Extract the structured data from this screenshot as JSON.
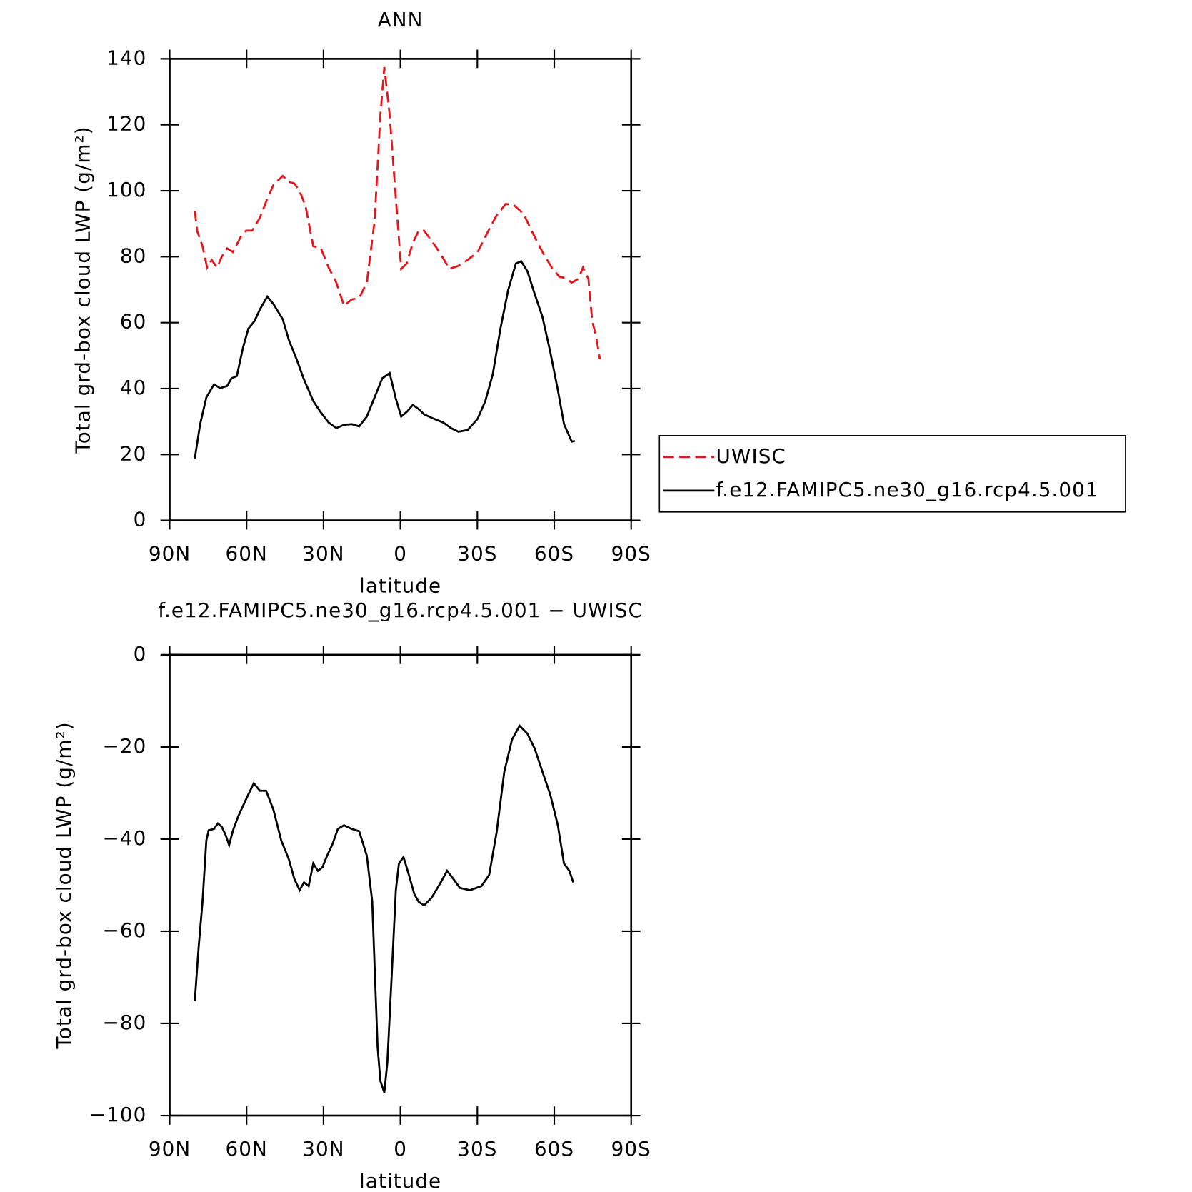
{
  "chart_data": [
    {
      "type": "line",
      "title": "ANN",
      "xlabel": "latitude",
      "ylabel": "Total grd-box cloud LWP (g/m²)",
      "xlim": [
        90,
        -90
      ],
      "xticks": [
        {
          "value": 90,
          "label": "90N"
        },
        {
          "value": 60,
          "label": "60N"
        },
        {
          "value": 30,
          "label": "30N"
        },
        0,
        {
          "value": -30,
          "label": "30S"
        },
        {
          "value": -60,
          "label": "60S"
        },
        {
          "value": -90,
          "label": "90S"
        }
      ],
      "ylim": [
        0,
        140
      ],
      "yticks": [
        0,
        20,
        40,
        60,
        80,
        100,
        120,
        140
      ],
      "series": [
        {
          "name": "UWISC",
          "color": "#e8141b",
          "dashed": true,
          "x": [
            80.2,
            79.3,
            77.2,
            75.4,
            73.6,
            71.5,
            69.7,
            67.6,
            65.3,
            62.3,
            60.2,
            57.8,
            54.8,
            51.9,
            49.5,
            45.9,
            43.5,
            41.4,
            39.3,
            37,
            34,
            31,
            28,
            25,
            22,
            19,
            16.1,
            13.1,
            10.1,
            7.8,
            6.3,
            4.2,
            1.8,
            -0.3,
            -2.4,
            -4.8,
            -7.1,
            -9.2,
            -12.2,
            -15.2,
            -19.1,
            -22.6,
            -26.2,
            -30.1,
            -34.6,
            -37.5,
            -41.1,
            -44.1,
            -48,
            -51.6,
            -55.4,
            -59,
            -62,
            -64.4,
            -66.8,
            -69.4,
            -71.2,
            -73.3,
            -74.8,
            -76.3,
            -77.8
          ],
          "values": [
            93.9,
            87.9,
            83.2,
            76.7,
            79,
            76.7,
            80,
            82.5,
            81.4,
            86,
            87.9,
            87.9,
            91.8,
            97.6,
            101.8,
            104.5,
            102.7,
            102.2,
            99.9,
            95.3,
            83.2,
            82.5,
            76.7,
            72.1,
            65.1,
            67,
            67.5,
            72.1,
            90.6,
            123,
            137.5,
            123,
            97.6,
            76.3,
            77.9,
            84.1,
            87.9,
            87.9,
            84.8,
            81.4,
            76.3,
            77.2,
            79,
            81.4,
            88.3,
            92.5,
            96,
            95.7,
            93,
            87.2,
            81.4,
            76.7,
            73.9,
            73.5,
            72.1,
            73.3,
            76.7,
            73.3,
            60.5,
            55.9,
            48.9
          ]
        },
        {
          "name": "f.e12.FAMIPC5.ne30_g16.rcp4.5.001",
          "color": "#000000",
          "dashed": false,
          "x": [
            80.2,
            78.1,
            75.7,
            72.7,
            70.3,
            67.6,
            65.9,
            63.8,
            61.4,
            59.3,
            56.9,
            54.8,
            51.9,
            49.5,
            45.9,
            43.5,
            40.5,
            37.8,
            34,
            31,
            28,
            25,
            22,
            19,
            16.1,
            13.1,
            10.1,
            7.1,
            4.2,
            1.8,
            -0.3,
            -2.7,
            -4.8,
            -7.1,
            -9.2,
            -12.2,
            -16.7,
            -19.7,
            -22.6,
            -26.2,
            -30.1,
            -33.1,
            -36,
            -39,
            -42,
            -45,
            -47.1,
            -49.5,
            -52.4,
            -55.4,
            -58.4,
            -61.4,
            -63.8,
            -66.8,
            -68
          ],
          "values": [
            18.8,
            29.2,
            37.3,
            41.3,
            40.1,
            40.8,
            43.1,
            43.8,
            52.4,
            58.2,
            60.5,
            64,
            67.9,
            65.6,
            61,
            54.7,
            48.9,
            43.1,
            36.2,
            32.7,
            29.7,
            28,
            29,
            29.2,
            28.5,
            31.5,
            37.3,
            43.1,
            44.7,
            36.9,
            31.5,
            33.1,
            35,
            33.8,
            32.2,
            31.1,
            29.7,
            28,
            26.9,
            27.4,
            30.8,
            36.2,
            44.3,
            58.2,
            69.8,
            77.9,
            78.6,
            75.6,
            68.6,
            61.7,
            51.2,
            39.6,
            29.2,
            23.9,
            24.1
          ]
        }
      ]
    },
    {
      "type": "line",
      "title": "f.e12.FAMIPC5.ne30_g16.rcp4.5.001 − UWISC",
      "xlabel": "latitude",
      "ylabel": "Total grd-box cloud LWP (g/m²)",
      "xlim": [
        90,
        -90
      ],
      "xticks": [
        {
          "value": 90,
          "label": "90N"
        },
        {
          "value": 60,
          "label": "60N"
        },
        {
          "value": 30,
          "label": "30N"
        },
        0,
        {
          "value": -30,
          "label": "30S"
        },
        {
          "value": -60,
          "label": "60S"
        },
        {
          "value": -90,
          "label": "90S"
        }
      ],
      "ylim": [
        -100,
        0
      ],
      "yticks": [
        {
          "value": -100,
          "label": "−100"
        },
        {
          "value": -80,
          "label": "−80"
        },
        {
          "value": -60,
          "label": "−60"
        },
        {
          "value": -40,
          "label": "−40"
        },
        {
          "value": -20,
          "label": "−20"
        },
        0
      ],
      "color": "#000000",
      "x": [
        80.2,
        78.7,
        77.2,
        75.7,
        74.8,
        72.7,
        71.2,
        69.7,
        68.2,
        66.8,
        65.3,
        63.2,
        61.4,
        59.3,
        57.2,
        54.8,
        52.4,
        49.5,
        46.5,
        43.5,
        41.4,
        39.3,
        37.6,
        35.8,
        34,
        32.2,
        30.4,
        28.6,
        26.5,
        24.4,
        22,
        19,
        16.1,
        13.1,
        11,
        8.9,
        7.8,
        6.3,
        5.1,
        3.6,
        1.8,
        0.6,
        -1.2,
        -3.3,
        -5.4,
        -7.1,
        -9.2,
        -12.2,
        -15.2,
        -18.2,
        -20.6,
        -23.2,
        -27.1,
        -31.6,
        -34.6,
        -37.5,
        -40.5,
        -43.5,
        -46.5,
        -49.5,
        -52.4,
        -55.4,
        -58.4,
        -61.4,
        -63.8,
        -65.9,
        -67.4
      ],
      "values": [
        -75.1,
        -63.5,
        -53.6,
        -40.3,
        -38.1,
        -37.8,
        -36.6,
        -37.3,
        -39.1,
        -41.3,
        -38.1,
        -35,
        -32.8,
        -30.3,
        -27.9,
        -29.5,
        -29.5,
        -33.7,
        -40.3,
        -44.4,
        -48.6,
        -51.1,
        -49.4,
        -50.2,
        -45.3,
        -46.9,
        -46.1,
        -43.6,
        -41.1,
        -37.8,
        -37,
        -37.8,
        -38.3,
        -43.6,
        -53.6,
        -85.1,
        -92.5,
        -95,
        -88.4,
        -71.8,
        -51.1,
        -45.3,
        -43.9,
        -47.8,
        -51.9,
        -53.6,
        -54.4,
        -52.7,
        -49.9,
        -46.9,
        -48.6,
        -50.6,
        -51.1,
        -50.2,
        -47.8,
        -38.6,
        -25.4,
        -18.4,
        -15.4,
        -17.1,
        -20.4,
        -25.4,
        -30.3,
        -37,
        -45.3,
        -46.9,
        -49.4
      ]
    }
  ]
}
